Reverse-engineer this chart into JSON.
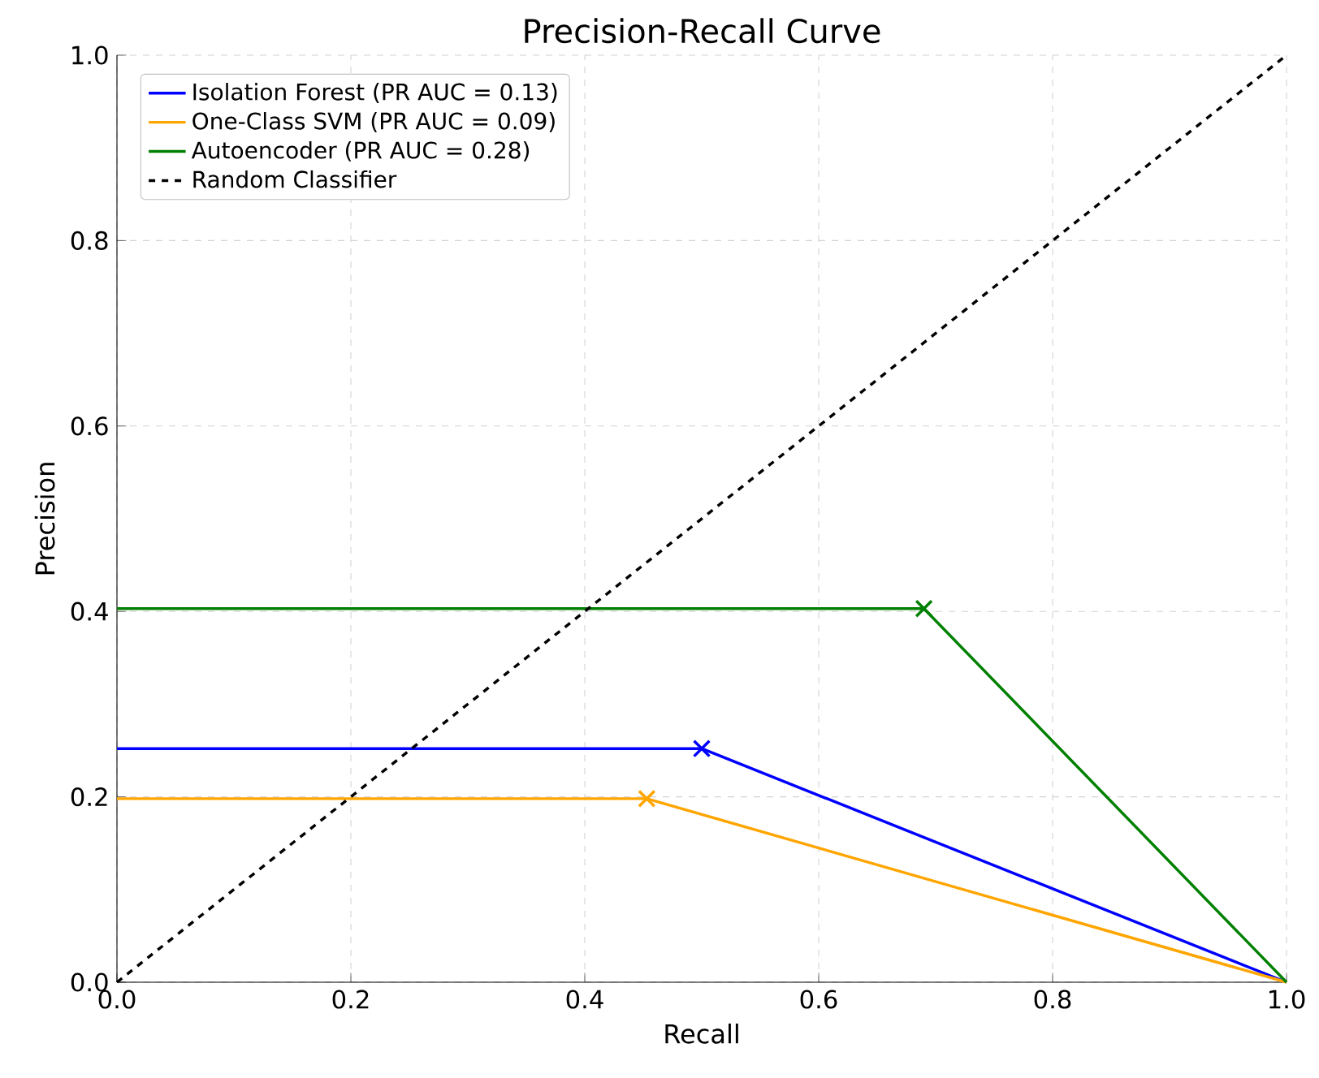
{
  "chart_data": {
    "type": "line",
    "title": "Precision-Recall Curve",
    "xlabel": "Recall",
    "ylabel": "Precision",
    "xlim": [
      0,
      1
    ],
    "ylim": [
      0,
      1
    ],
    "xticks": [
      {
        "value": 0,
        "label": "0.0"
      },
      {
        "value": 0.2,
        "label": "0.2"
      },
      {
        "value": 0.4,
        "label": "0.4"
      },
      {
        "value": 0.6,
        "label": "0.6"
      },
      {
        "value": 0.8,
        "label": "0.8"
      },
      {
        "value": 1,
        "label": "1.0"
      }
    ],
    "yticks": [
      {
        "value": 0,
        "label": "0.0"
      },
      {
        "value": 0.2,
        "label": "0.2"
      },
      {
        "value": 0.4,
        "label": "0.4"
      },
      {
        "value": 0.6,
        "label": "0.6"
      },
      {
        "value": 0.8,
        "label": "0.8"
      },
      {
        "value": 1,
        "label": "1.0"
      }
    ],
    "grid": true,
    "legend": "top left",
    "series": [
      {
        "name": "Isolation Forest (PR AUC = 0.13)",
        "color": "#0000ff",
        "x": [
          0,
          0.5,
          1
        ],
        "values": [
          0.252,
          0.252,
          0
        ]
      },
      {
        "name": "One-Class SVM (PR AUC = 0.09)",
        "color": "#ffa500",
        "x": [
          0,
          0.453,
          1
        ],
        "values": [
          0.198,
          0.198,
          0
        ]
      },
      {
        "name": "Autoencoder (PR AUC = 0.28)",
        "color": "#008000",
        "x": [
          0,
          0.69,
          1
        ],
        "values": [
          0.403,
          0.403,
          0
        ]
      },
      {
        "name": "Random Classifier",
        "color": "#000000",
        "line_style": "dashed",
        "x": [
          0,
          1
        ],
        "values": [
          0,
          1
        ]
      },
      {
        "type": "scatter",
        "marker": "cross",
        "color": "#0000ff",
        "x": [
          0.5
        ],
        "values": [
          0.252
        ]
      },
      {
        "type": "scatter",
        "marker": "cross",
        "color": "#ffa500",
        "x": [
          0.453
        ],
        "values": [
          0.198
        ]
      },
      {
        "type": "scatter",
        "marker": "cross",
        "color": "#008000",
        "x": [
          0.69
        ],
        "values": [
          0.403
        ]
      }
    ]
  }
}
